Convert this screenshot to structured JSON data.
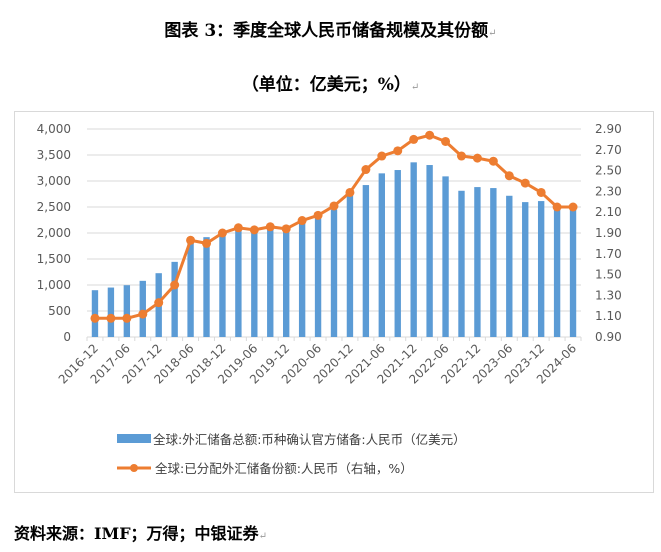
{
  "title": "图表 3：季度全球人民币储备规模及其份额",
  "subtitle": "（单位：亿美元；%）",
  "paragraph_mark": "↵",
  "source": "资料来源：IMF；万得；中银证券",
  "chart_data": {
    "type": "bar+line",
    "categories": [
      "2016-12",
      "2017-03",
      "2017-06",
      "2017-09",
      "2017-12",
      "2018-03",
      "2018-06",
      "2018-09",
      "2018-12",
      "2019-03",
      "2019-06",
      "2019-09",
      "2019-12",
      "2020-03",
      "2020-06",
      "2020-09",
      "2020-12",
      "2021-03",
      "2021-06",
      "2021-09",
      "2021-12",
      "2022-03",
      "2022-06",
      "2022-09",
      "2022-12",
      "2023-03",
      "2023-06",
      "2023-09",
      "2023-12",
      "2024-03",
      "2024-06"
    ],
    "tick_labels": [
      "2016-12",
      "2017-06",
      "2017-12",
      "2018-06",
      "2018-12",
      "2019-06",
      "2019-12",
      "2020-06",
      "2020-12",
      "2021-06",
      "2021-12",
      "2022-06",
      "2022-12",
      "2023-06",
      "2023-12",
      "2024-06"
    ],
    "series": [
      {
        "name": "全球:外汇储备总额:币种确认官方储备:人民币（亿美元）",
        "type": "bar",
        "axis": "left",
        "color": "#5b9bd5",
        "values": [
          900,
          951,
          996,
          1080,
          1227,
          1445,
          1870,
          1920,
          2000,
          2120,
          2060,
          2120,
          2080,
          2200,
          2300,
          2450,
          2725,
          2922,
          3147,
          3211,
          3359,
          3307,
          3089,
          2812,
          2883,
          2864,
          2716,
          2594,
          2614,
          2504,
          2450
        ]
      },
      {
        "name": "全球:已分配外汇储备份额:人民币（右轴，%）",
        "type": "line",
        "axis": "right",
        "color": "#ed7d31",
        "values": [
          1.08,
          1.08,
          1.08,
          1.12,
          1.23,
          1.4,
          1.83,
          1.8,
          1.9,
          1.95,
          1.93,
          1.96,
          1.94,
          2.02,
          2.07,
          2.16,
          2.29,
          2.51,
          2.64,
          2.69,
          2.8,
          2.84,
          2.78,
          2.64,
          2.62,
          2.59,
          2.45,
          2.38,
          2.29,
          2.15,
          2.15
        ]
      }
    ],
    "y_left": {
      "range": [
        0,
        4000
      ],
      "ticks": [
        "0",
        "500",
        "1,000",
        "1,500",
        "2,000",
        "2,500",
        "3,000",
        "3,500",
        "4,000"
      ]
    },
    "y_right": {
      "range": [
        0.9,
        2.9
      ],
      "ticks": [
        "0.90",
        "1.10",
        "1.30",
        "1.50",
        "1.70",
        "1.90",
        "2.10",
        "2.30",
        "2.50",
        "2.70",
        "2.90"
      ]
    },
    "grid": true,
    "legend_position": "bottom"
  }
}
